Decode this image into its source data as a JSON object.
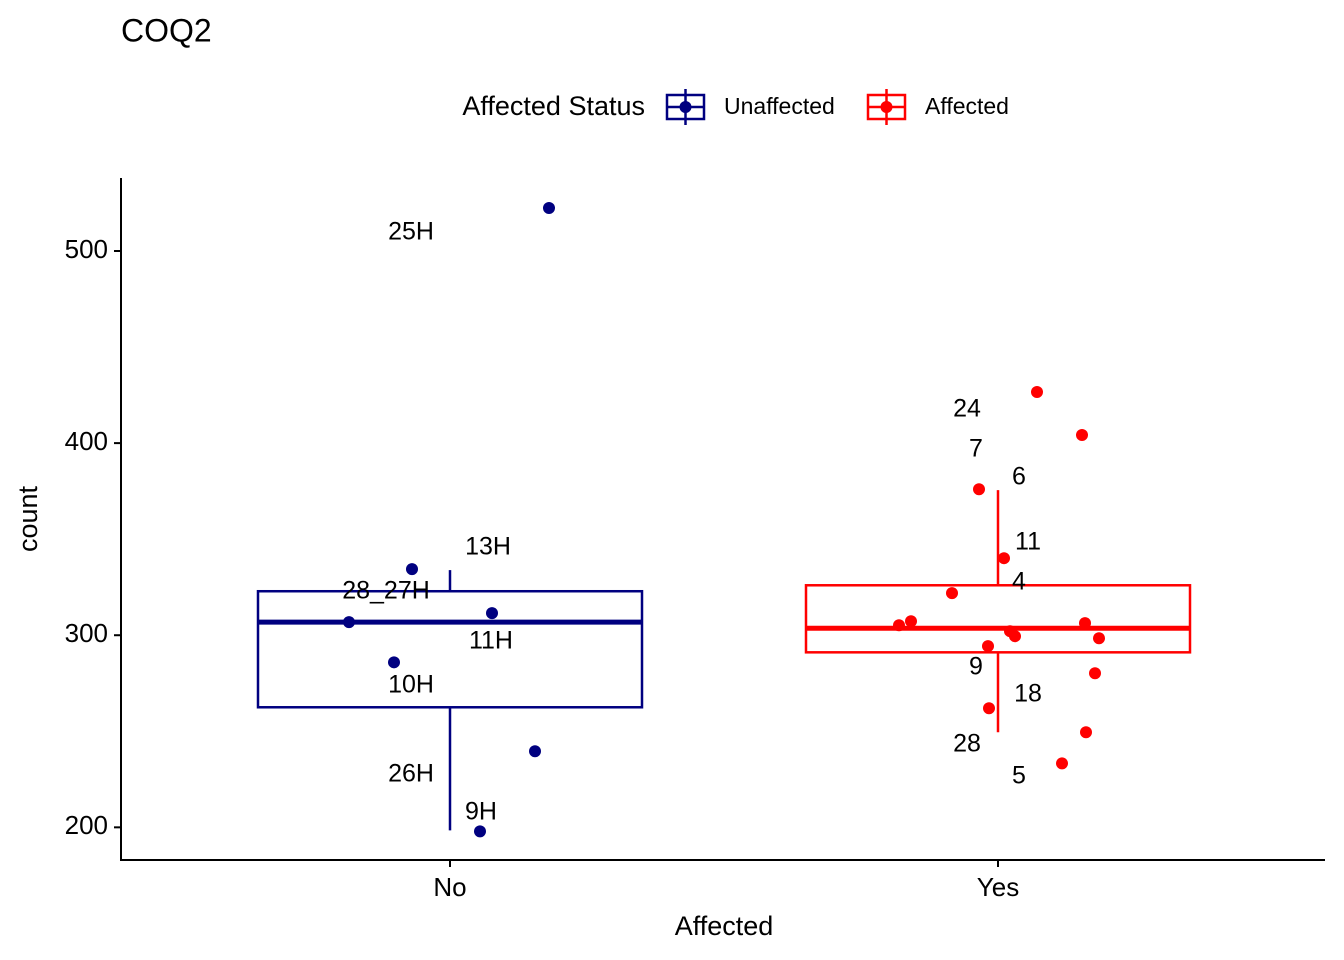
{
  "chart_data": {
    "type": "box",
    "title": "COQ2",
    "x_label": "Affected",
    "y_label": "count",
    "legend_title": "Affected Status",
    "legend_position": "top",
    "categories": [
      "No",
      "Yes"
    ],
    "ylim": [
      183,
      538
    ],
    "yticks": [
      200,
      300,
      400,
      500
    ],
    "series": [
      {
        "name": "Unaffected",
        "color": "#000080",
        "box": {
          "whisker_low": 198.4,
          "q1": 262.5,
          "median": 306.8,
          "q3": 322.9,
          "whisker_high": 333.9
        },
        "points": [
          522.4,
          334.4,
          311.5,
          306.8,
          285.9,
          239.6,
          197.9
        ],
        "point_labels": [
          "25H",
          "13H",
          "11H",
          "28_27H",
          "10H",
          "26H",
          "9H"
        ]
      },
      {
        "name": "Affected",
        "color": "#ff0000",
        "box": {
          "whisker_low": 249.5,
          "q1": 291.1,
          "median": 303.6,
          "q3": 326.0,
          "whisker_high": 375.5
        },
        "points": [
          426.6,
          404.2,
          376.0,
          340.1,
          321.9,
          305.2,
          307.3,
          306.3,
          302.1,
          299.5,
          298.4,
          294.3,
          280.2,
          262.0,
          249.5,
          233.3
        ],
        "point_labels": [
          "24",
          "7",
          "6",
          "11",
          "4",
          null,
          null,
          null,
          null,
          null,
          null,
          "9",
          null,
          "18",
          "28",
          "5"
        ]
      }
    ]
  }
}
